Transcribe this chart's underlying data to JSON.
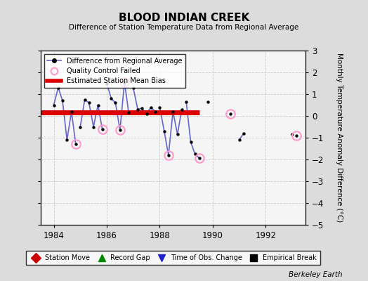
{
  "title": "BLOOD INDIAN CREEK",
  "subtitle": "Difference of Station Temperature Data from Regional Average",
  "ylabel": "Monthly Temperature Anomaly Difference (°C)",
  "credit": "Berkeley Earth",
  "xlim": [
    1983.5,
    1993.5
  ],
  "ylim": [
    -5,
    3
  ],
  "yticks": [
    -5,
    -4,
    -3,
    -2,
    -1,
    0,
    1,
    2,
    3
  ],
  "xticks": [
    1984,
    1986,
    1988,
    1990,
    1992
  ],
  "bias_level": 0.15,
  "bias_x_start": 1983.5,
  "bias_x_end": 1989.5,
  "bg_color": "#dcdcdc",
  "plot_bg_color": "#f5f5f5",
  "main_line_color": "#6666cc",
  "main_dot_color": "#000000",
  "bias_color": "#dd0000",
  "qc_color": "#ff99cc",
  "data_x": [
    1984.0,
    1984.17,
    1984.33,
    1984.5,
    1984.67,
    1984.83,
    1985.0,
    1985.17,
    1985.33,
    1985.5,
    1985.67,
    1985.83,
    1986.0,
    1986.17,
    1986.33,
    1986.5,
    1986.67,
    1986.83,
    1987.0,
    1987.17,
    1987.33,
    1987.5,
    1987.67,
    1987.83,
    1988.0,
    1988.17,
    1988.33,
    1988.5,
    1988.67,
    1988.83,
    1989.0,
    1989.17,
    1989.33,
    1989.5,
    1989.83,
    1990.67,
    1991.0,
    1991.17,
    1993.0,
    1993.17
  ],
  "data_y": [
    0.5,
    1.3,
    0.7,
    -1.1,
    0.2,
    -1.3,
    -0.5,
    0.75,
    0.6,
    -0.5,
    0.5,
    -0.6,
    1.5,
    0.8,
    0.6,
    -0.65,
    1.55,
    0.15,
    1.3,
    0.3,
    0.35,
    0.1,
    0.4,
    0.2,
    0.4,
    -0.7,
    -1.8,
    0.2,
    -0.85,
    0.3,
    0.65,
    -1.2,
    -1.75,
    -1.95,
    0.65,
    0.1,
    -1.1,
    -0.8,
    -0.85,
    -0.9
  ],
  "connected_segments": [
    [
      0,
      1,
      2,
      3,
      4,
      5
    ],
    [
      6,
      7,
      8,
      9,
      10,
      11
    ],
    [
      12,
      13,
      14,
      15,
      16,
      17
    ],
    [
      18,
      19,
      20,
      21,
      22,
      23
    ],
    [
      24,
      25,
      26,
      27,
      28,
      29
    ],
    [
      30,
      31,
      32,
      33
    ],
    [
      36,
      37
    ]
  ],
  "qc_indices": [
    5,
    11,
    15,
    16,
    26,
    33,
    35,
    39
  ],
  "legend_bottom_items": [
    {
      "label": "Station Move",
      "color": "#cc0000",
      "marker": "D"
    },
    {
      "label": "Record Gap",
      "color": "#008800",
      "marker": "^"
    },
    {
      "label": "Time of Obs. Change",
      "color": "#2222cc",
      "marker": "v"
    },
    {
      "label": "Empirical Break",
      "color": "#000000",
      "marker": "s"
    }
  ]
}
